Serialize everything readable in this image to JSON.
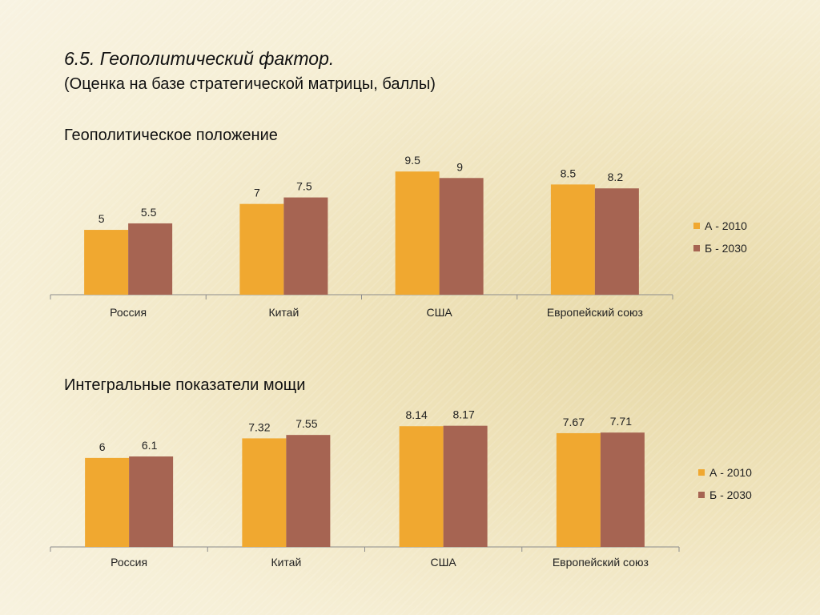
{
  "slide": {
    "title": "6.5. Геополитический фактор.",
    "subtitle": "(Оценка на базе стратегической матрицы, баллы)"
  },
  "colors": {
    "series_a": "#F0A830",
    "series_b": "#A66452",
    "axis": "#8c8c8c"
  },
  "chart_data": [
    {
      "type": "bar",
      "title": "Геополитическое положение",
      "categories": [
        "Россия",
        "Китай",
        "США",
        "Европейский союз"
      ],
      "series": [
        {
          "name": "А - 2010",
          "values": [
            5,
            7,
            9.5,
            8.5
          ],
          "labels": [
            "5",
            "7",
            "9.5",
            "8.5"
          ]
        },
        {
          "name": "Б - 2030",
          "values": [
            5.5,
            7.5,
            9,
            8.2
          ],
          "labels": [
            "5.5",
            "7.5",
            "9",
            "8.2"
          ]
        }
      ],
      "ylim": [
        0,
        10.5
      ],
      "legend": "right",
      "grid": false
    },
    {
      "type": "bar",
      "title": "Интегральные показатели мощи",
      "categories": [
        "Россия",
        "Китай",
        "США",
        "Европейский союз"
      ],
      "series": [
        {
          "name": "А - 2010",
          "values": [
            6,
            7.32,
            8.14,
            7.67
          ],
          "labels": [
            "6",
            "7.32",
            "8.14",
            "7.67"
          ]
        },
        {
          "name": "Б - 2030",
          "values": [
            6.1,
            7.55,
            8.17,
            7.71
          ],
          "labels": [
            "6.1",
            "7.55",
            "8.17",
            "7.71"
          ]
        }
      ],
      "ylim": [
        0,
        8.8
      ],
      "legend": "right",
      "grid": false
    }
  ]
}
